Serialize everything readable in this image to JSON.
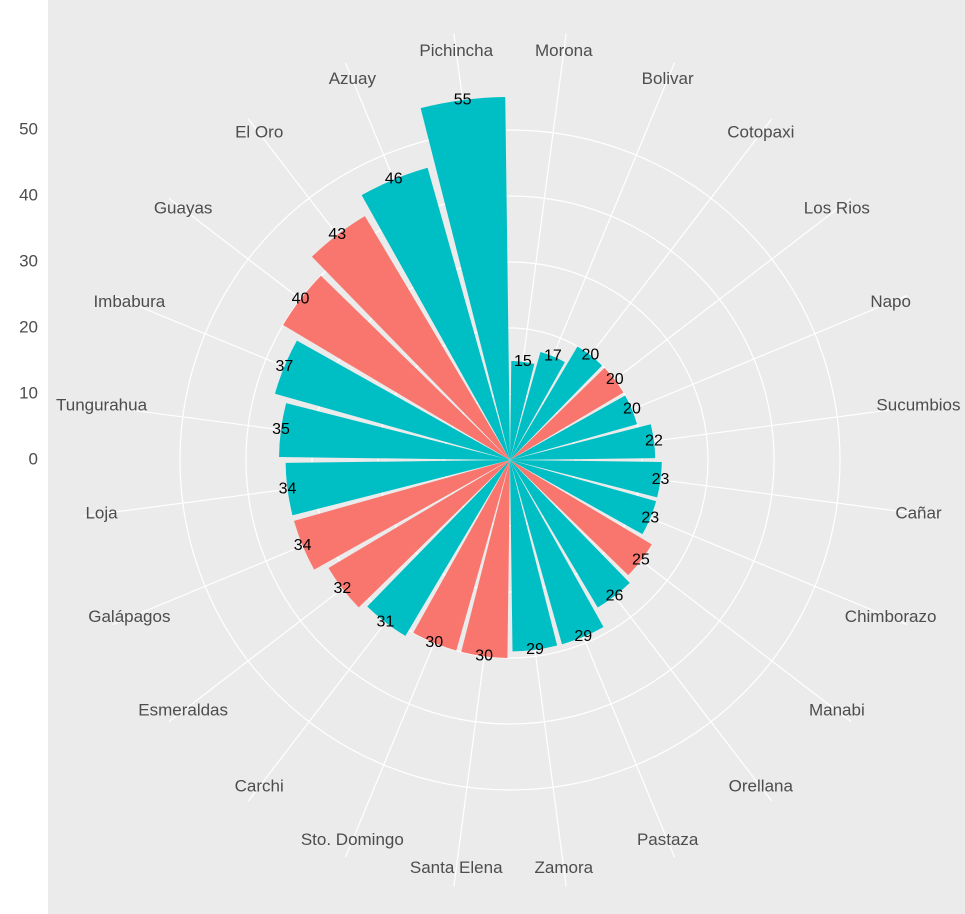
{
  "chart_data": {
    "type": "polar_bar",
    "categories": [
      "Morona",
      "Bolivar",
      "Cotopaxi",
      "Los Rios",
      "Napo",
      "Sucumbios",
      "Cañar",
      "Chimborazo",
      "Manabi",
      "Orellana",
      "Pastaza",
      "Zamora",
      "Santa Elena",
      "Sto. Domingo",
      "Carchi",
      "Esmeraldas",
      "Galápagos",
      "Loja",
      "Tungurahua",
      "Imbabura",
      "Guayas",
      "El Oro",
      "Azuay",
      "Pichincha"
    ],
    "values": [
      15,
      17,
      20,
      20,
      20,
      22,
      23,
      23,
      25,
      26,
      29,
      29,
      30,
      30,
      31,
      32,
      34,
      34,
      35,
      37,
      40,
      43,
      46,
      55
    ],
    "colors": [
      "#00bfc4",
      "#00bfc4",
      "#00bfc4",
      "#f8766d",
      "#00bfc4",
      "#00bfc4",
      "#00bfc4",
      "#00bfc4",
      "#f8766d",
      "#00bfc4",
      "#00bfc4",
      "#00bfc4",
      "#f8766d",
      "#f8766d",
      "#00bfc4",
      "#f8766d",
      "#f8766d",
      "#00bfc4",
      "#00bfc4",
      "#00bfc4",
      "#f8766d",
      "#f8766d",
      "#00bfc4",
      "#00bfc4"
    ],
    "ylim": [
      0,
      55
    ],
    "yticks": [
      0,
      10,
      20,
      30,
      40,
      50
    ],
    "grid": true
  }
}
